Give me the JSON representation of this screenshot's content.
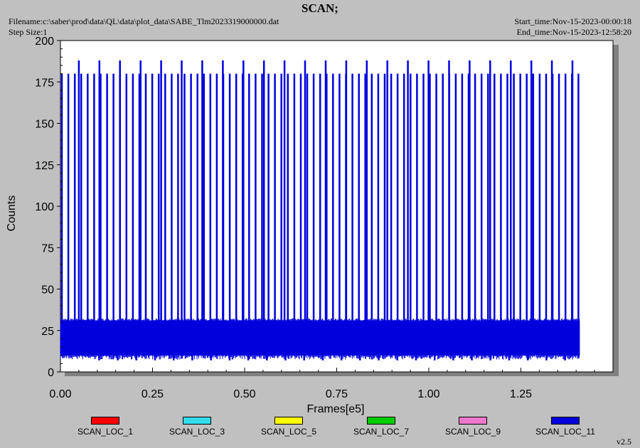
{
  "header": {
    "title": "SCAN;",
    "filename": "Filename:c:\\saber\\prod\\data\\QL\\data\\plot_data\\SABE_Tlm2023319000000.dat",
    "step_size": "Step Size:1",
    "start_time": "Start_time:Nov-15-2023-00:00:18",
    "end_time": "End_time:Nov-15-2023-12:58:20",
    "version": "v2.5"
  },
  "chart_data": {
    "type": "line",
    "title": "SCAN;",
    "xlabel": "Frames[e5]",
    "ylabel": "Counts",
    "xlim": [
      0.0,
      1.5
    ],
    "ylim": [
      0,
      200
    ],
    "x_ticks": [
      "0.00",
      "0.25",
      "0.50",
      "0.75",
      "1.00",
      "1.25"
    ],
    "y_ticks": [
      "0",
      "25",
      "50",
      "75",
      "100",
      "125",
      "150",
      "175",
      "200"
    ],
    "grid": false,
    "legend_position": "bottom",
    "x_data_end": 1.41,
    "baseline_band": [
      10,
      31
    ],
    "scan_peak_level": 180,
    "tall_peak_level": 188,
    "series": [
      {
        "name": "SCAN_LOC_1",
        "color": "#ff0000"
      },
      {
        "name": "SCAN_LOC_3",
        "color": "#33ddee"
      },
      {
        "name": "SCAN_LOC_5",
        "color": "#ffff00"
      },
      {
        "name": "SCAN_LOC_7",
        "color": "#00cc00"
      },
      {
        "name": "SCAN_LOC_9",
        "color": "#ee77cc"
      },
      {
        "name": "SCAN_LOC_11",
        "color": "#0000dd"
      }
    ]
  }
}
